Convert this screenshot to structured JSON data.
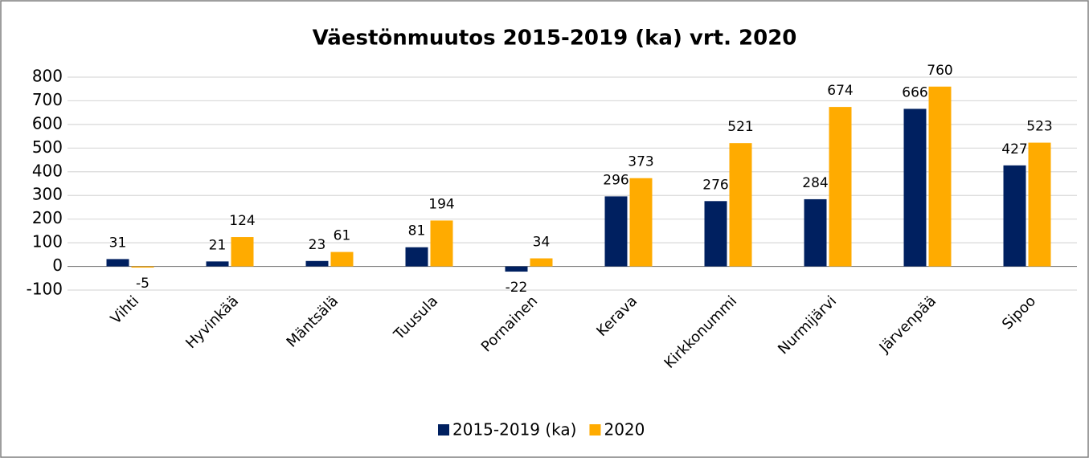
{
  "chart_data": {
    "type": "bar",
    "title": "Väestönmuutos 2015-2019 (ka) vrt. 2020",
    "categories": [
      "Vihti",
      "Hyvinkää",
      "Mäntsälä",
      "Tuusula",
      "Pornainen",
      "Kerava",
      "Kirkkonummi",
      "Nurmijärvi",
      "Järvenpää",
      "Sipoo"
    ],
    "series": [
      {
        "name": "2015-2019 (ka)",
        "color": "#002060",
        "values": [
          31,
          21,
          23,
          81,
          -22,
          296,
          276,
          284,
          666,
          427
        ]
      },
      {
        "name": "2020",
        "color": "#ffab00",
        "values": [
          -5,
          124,
          61,
          194,
          34,
          373,
          521,
          674,
          760,
          523
        ]
      }
    ],
    "ylim": [
      -100,
      800
    ],
    "yticks": [
      -100,
      0,
      100,
      200,
      300,
      400,
      500,
      600,
      700,
      800
    ],
    "grid": true,
    "legend": "bottom"
  }
}
